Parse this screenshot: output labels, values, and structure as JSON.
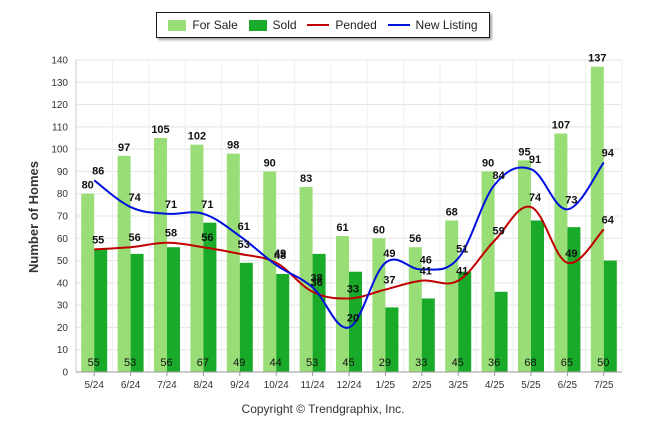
{
  "legend": {
    "items": [
      {
        "label": "For Sale",
        "kind": "bar",
        "color": "#99dd77"
      },
      {
        "label": "Sold",
        "kind": "bar",
        "color": "#1aaa2a"
      },
      {
        "label": "Pended",
        "kind": "line",
        "color": "#c00000"
      },
      {
        "label": "New Listing",
        "kind": "line",
        "color": "#0010dd"
      }
    ]
  },
  "copyright": "Copyright © Trendgraphix, Inc.",
  "chart_data": {
    "type": "bar",
    "ylabel": "Number of Homes",
    "xlabel": "",
    "ylim": [
      0,
      140
    ],
    "yticks": [
      0,
      10,
      20,
      30,
      40,
      50,
      60,
      70,
      80,
      90,
      100,
      110,
      120,
      130,
      140
    ],
    "grid": true,
    "legend_position": "top",
    "categories": [
      "5/24",
      "6/24",
      "7/24",
      "8/24",
      "9/24",
      "10/24",
      "11/24",
      "12/24",
      "1/25",
      "2/25",
      "3/25",
      "4/25",
      "5/25",
      "6/25",
      "7/25"
    ],
    "series": [
      {
        "name": "For Sale",
        "kind": "bar",
        "color": "#99dd77",
        "values": [
          80,
          97,
          105,
          102,
          98,
          90,
          83,
          61,
          60,
          56,
          68,
          90,
          95,
          107,
          137
        ]
      },
      {
        "name": "Sold",
        "kind": "bar",
        "color": "#1aaa2a",
        "values": [
          55,
          53,
          56,
          67,
          49,
          44,
          53,
          45,
          29,
          33,
          45,
          36,
          68,
          65,
          50
        ]
      },
      {
        "name": "Pended",
        "kind": "line",
        "color": "#c00000",
        "values": [
          55,
          56,
          58,
          56,
          53,
          49,
          36,
          33,
          37,
          41,
          41,
          59,
          74,
          49,
          64
        ]
      },
      {
        "name": "New Listing",
        "kind": "line",
        "color": "#0010dd",
        "values": [
          86,
          74,
          71,
          71,
          61,
          48,
          38,
          20,
          49,
          46,
          51,
          84,
          91,
          73,
          94
        ]
      }
    ]
  }
}
